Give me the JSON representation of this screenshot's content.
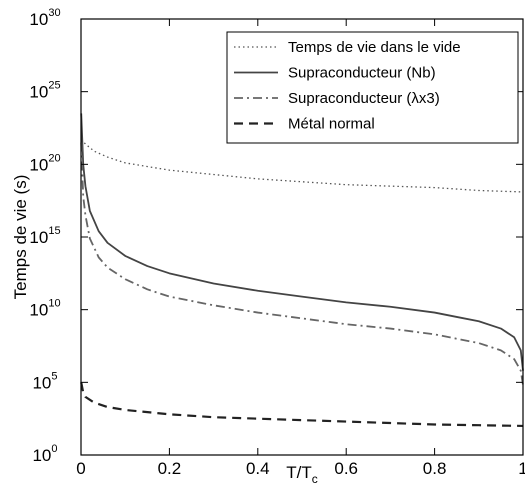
{
  "chart_data": {
    "type": "line",
    "xlabel": "T/T",
    "xlabel_sub": "c",
    "ylabel": "Temps de vie (s)",
    "xlim": [
      0,
      1
    ],
    "ylim_log10": [
      0,
      30
    ],
    "y_scale": "log",
    "x_ticks": [
      "0",
      "0.2",
      "0.4",
      "0.6",
      "0.8",
      "1"
    ],
    "x_tick_values": [
      0,
      0.2,
      0.4,
      0.6,
      0.8,
      1
    ],
    "y_tick_base": "10",
    "y_tick_exponents": [
      "0",
      "5",
      "10",
      "15",
      "20",
      "25",
      "30"
    ],
    "y_tick_values_log10": [
      0,
      5,
      10,
      15,
      20,
      25,
      30
    ],
    "grid": false,
    "legend_position": "top-right",
    "series": [
      {
        "name": "Temps de vie dans le vide",
        "style": "dotted",
        "color": "#555555",
        "x": [
          0.0005,
          0.01,
          0.03,
          0.06,
          0.1,
          0.2,
          0.3,
          0.4,
          0.5,
          0.6,
          0.7,
          0.8,
          0.9,
          1.0
        ],
        "log10_y": [
          21.7,
          21.4,
          20.9,
          20.5,
          20.1,
          19.6,
          19.3,
          19.0,
          18.8,
          18.6,
          18.5,
          18.4,
          18.2,
          18.1
        ]
      },
      {
        "name": "Supraconducteur (Nb)",
        "style": "solid",
        "color": "#444444",
        "x": [
          0.0005,
          0.005,
          0.01,
          0.02,
          0.04,
          0.06,
          0.1,
          0.15,
          0.2,
          0.3,
          0.4,
          0.5,
          0.6,
          0.7,
          0.8,
          0.85,
          0.9,
          0.95,
          0.98,
          0.995,
          1.0
        ],
        "log10_y": [
          23.5,
          20.0,
          18.5,
          16.8,
          15.4,
          14.6,
          13.7,
          13.0,
          12.5,
          11.8,
          11.3,
          10.9,
          10.5,
          10.2,
          9.8,
          9.5,
          9.2,
          8.7,
          8.1,
          7.2,
          5.8
        ]
      },
      {
        "name": "Supraconducteur (λx3)",
        "style": "dashdot",
        "color": "#666666",
        "x": [
          0.0005,
          0.005,
          0.01,
          0.02,
          0.04,
          0.06,
          0.1,
          0.15,
          0.2,
          0.3,
          0.4,
          0.5,
          0.6,
          0.7,
          0.8,
          0.85,
          0.9,
          0.95,
          0.98,
          0.995,
          1.0
        ],
        "log10_y": [
          21.5,
          17.8,
          16.5,
          14.9,
          13.6,
          12.9,
          12.1,
          11.4,
          10.9,
          10.3,
          9.8,
          9.4,
          9.0,
          8.7,
          8.3,
          8.0,
          7.7,
          7.2,
          6.6,
          5.8,
          4.8
        ]
      },
      {
        "name": "Métal normal",
        "style": "dashed",
        "color": "#222222",
        "x": [
          0.0005,
          0.005,
          0.01,
          0.03,
          0.06,
          0.1,
          0.2,
          0.3,
          0.4,
          0.5,
          0.6,
          0.7,
          0.8,
          0.9,
          1.0
        ],
        "log10_y": [
          5.0,
          4.3,
          4.0,
          3.6,
          3.3,
          3.1,
          2.8,
          2.6,
          2.5,
          2.4,
          2.3,
          2.2,
          2.1,
          2.05,
          2.0
        ]
      }
    ]
  }
}
